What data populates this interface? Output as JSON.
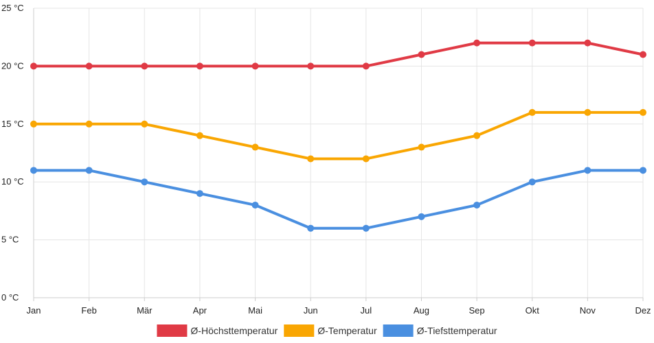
{
  "chart_data": {
    "type": "line",
    "title": "",
    "xlabel": "",
    "ylabel": "",
    "y_unit": "°C",
    "ylim": [
      0,
      25
    ],
    "y_ticks": [
      {
        "value": 0,
        "label": "0 °C"
      },
      {
        "value": 5,
        "label": "5 °C"
      },
      {
        "value": 10,
        "label": "10 °C"
      },
      {
        "value": 15,
        "label": "15 °C"
      },
      {
        "value": 20,
        "label": "20 °C"
      },
      {
        "value": 25,
        "label": "25 °C"
      }
    ],
    "categories": [
      "Jan",
      "Feb",
      "Mär",
      "Apr",
      "Mai",
      "Jun",
      "Jul",
      "Aug",
      "Sep",
      "Okt",
      "Nov",
      "Dez"
    ],
    "grid": true,
    "legend_position": "bottom-center",
    "series": [
      {
        "name": "Ø-Höchsttemperatur",
        "color": "#e03a45",
        "values": [
          20,
          20,
          20,
          20,
          20,
          20,
          20,
          21,
          22,
          22,
          22,
          21
        ]
      },
      {
        "name": "Ø-Temperatur",
        "color": "#f9a602",
        "values": [
          15,
          15,
          15,
          14,
          13,
          12,
          12,
          13,
          14,
          16,
          16,
          16
        ]
      },
      {
        "name": "Ø-Tiefsttemperatur",
        "color": "#4a8fe0",
        "values": [
          11,
          11,
          10,
          9,
          8,
          6,
          6,
          7,
          8,
          10,
          11,
          11
        ]
      }
    ]
  }
}
